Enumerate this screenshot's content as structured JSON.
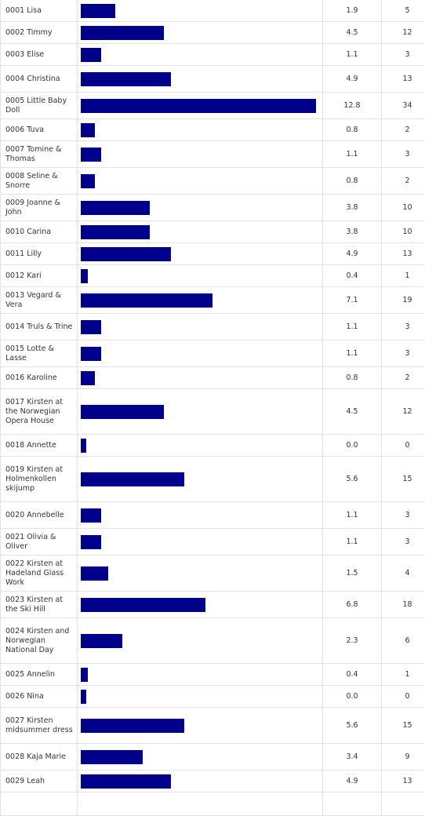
{
  "poll": {
    "max_votes": 34,
    "rows": [
      {
        "name": "0001 Lisa",
        "percent": "1.9",
        "votes": "5"
      },
      {
        "name": "0002 Timmy",
        "percent": "4.5",
        "votes": "12"
      },
      {
        "name": "0003 Elise",
        "percent": "1.1",
        "votes": "3"
      },
      {
        "name": "0004 Christina",
        "percent": "4.9",
        "votes": "13"
      },
      {
        "name": "0005 Little Baby Doll",
        "percent": "12.8",
        "votes": "34"
      },
      {
        "name": "0006 Tuva",
        "percent": "0.8",
        "votes": "2"
      },
      {
        "name": "0007 Tomine & Thomas",
        "percent": "1.1",
        "votes": "3"
      },
      {
        "name": "0008 Seline & Snorre",
        "percent": "0.8",
        "votes": "2"
      },
      {
        "name": "0009 Joanne & John",
        "percent": "3.8",
        "votes": "10"
      },
      {
        "name": "0010 Carina",
        "percent": "3.8",
        "votes": "10"
      },
      {
        "name": "0011 Lilly",
        "percent": "4.9",
        "votes": "13"
      },
      {
        "name": "0012 Kari",
        "percent": "0.4",
        "votes": "1"
      },
      {
        "name": "0013 Vegard & Vera",
        "percent": "7.1",
        "votes": "19"
      },
      {
        "name": "0014 Truls & Trine",
        "percent": "1.1",
        "votes": "3"
      },
      {
        "name": "0015 Lotte & Lasse",
        "percent": "1.1",
        "votes": "3"
      },
      {
        "name": "0016 Karoline",
        "percent": "0.8",
        "votes": "2"
      },
      {
        "name": "0017 Kirsten at the Norwegian Opera House",
        "percent": "4.5",
        "votes": "12"
      },
      {
        "name": "0018 Annette",
        "percent": "0.0",
        "votes": "0"
      },
      {
        "name": "0019 Kirsten at Holmenkollen skijump",
        "percent": "5.6",
        "votes": "15"
      },
      {
        "name": "0020 Annebelle",
        "percent": "1.1",
        "votes": "3"
      },
      {
        "name": "0021 Olivia & Oliver",
        "percent": "1.1",
        "votes": "3"
      },
      {
        "name": "0022 Kirsten at Hadeland Glass Work",
        "percent": "1.5",
        "votes": "4"
      },
      {
        "name": "0023 Kirsten at the Ski Hill",
        "percent": "6.8",
        "votes": "18"
      },
      {
        "name": "0024 Kirsten and Norwegian National Day",
        "percent": "2.3",
        "votes": "6"
      },
      {
        "name": "0025 Annelin",
        "percent": "0.4",
        "votes": "1"
      },
      {
        "name": "0026 Nina",
        "percent": "0.0",
        "votes": "0"
      },
      {
        "name": "0027 Kirsten midsummer dress",
        "percent": "5.6",
        "votes": "15"
      },
      {
        "name": "0028 Kaja Marie",
        "percent": "3.4",
        "votes": "9"
      },
      {
        "name": "0029 Leah",
        "percent": "4.9",
        "votes": "13"
      },
      {
        "name": "",
        "percent": "",
        "votes": ""
      }
    ]
  },
  "colors": {
    "bar": "#00008b",
    "border": "#e2e2e2",
    "text": "#333333"
  }
}
